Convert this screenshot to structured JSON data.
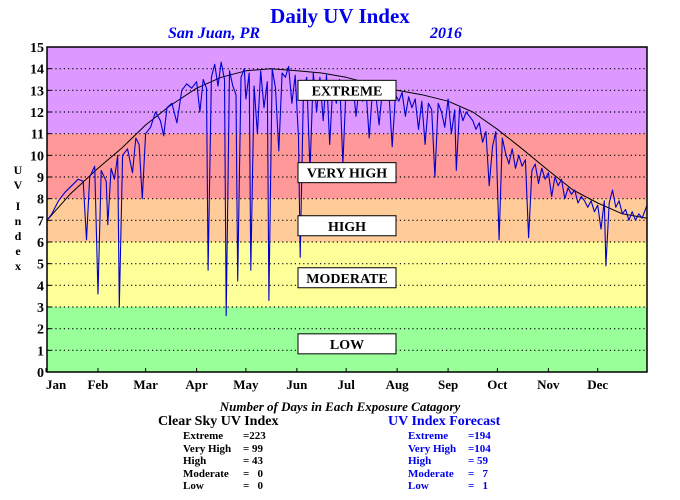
{
  "header": {
    "title": "Daily UV Index",
    "location": "San Juan, PR",
    "year": "2016"
  },
  "axis": {
    "ylabel_letters": [
      "U",
      "V",
      "I",
      "n",
      "d",
      "e",
      "x"
    ],
    "caption": "Number of Days in Each Exposure Catagory"
  },
  "bands": [
    {
      "label": "LOW",
      "from": 0,
      "to": 3,
      "color": "#99ff99"
    },
    {
      "label": "MODERATE",
      "from": 3,
      "to": 6,
      "color": "#ffff99"
    },
    {
      "label": "HIGH",
      "from": 6,
      "to": 8,
      "color": "#ffcc99"
    },
    {
      "label": "VERY HIGH",
      "from": 8,
      "to": 11,
      "color": "#ff9999"
    },
    {
      "label": "EXTREME",
      "from": 11,
      "to": 15,
      "color": "#dd99ff"
    }
  ],
  "stats": {
    "clear_sky": {
      "heading": "Clear Sky UV Index",
      "rows": [
        {
          "label": "Extreme",
          "value": "=223"
        },
        {
          "label": "Very High",
          "value": "= 99"
        },
        {
          "label": "High",
          "value": "= 43"
        },
        {
          "label": "Moderate",
          "value": "=   0"
        },
        {
          "label": "Low",
          "value": "=   0"
        }
      ]
    },
    "forecast": {
      "heading": "UV Index Forecast",
      "rows": [
        {
          "label": "Extreme",
          "value": "=194"
        },
        {
          "label": "Very High",
          "value": "=104"
        },
        {
          "label": "High",
          "value": "= 59"
        },
        {
          "label": "Moderate",
          "value": "=   7"
        },
        {
          "label": "Low",
          "value": "=   1"
        }
      ]
    }
  },
  "chart_data": {
    "type": "line",
    "title": "Daily UV Index",
    "subtitle": "San Juan, PR 2016",
    "xlabel": "",
    "ylabel": "UV Index",
    "ylim": [
      0,
      15
    ],
    "xlim": [
      1,
      366
    ],
    "yticks": [
      0,
      1,
      2,
      3,
      4,
      5,
      6,
      7,
      8,
      9,
      10,
      11,
      12,
      13,
      14,
      15
    ],
    "month_ticks": [
      {
        "label": "Jan",
        "day": 1
      },
      {
        "label": "Feb",
        "day": 32
      },
      {
        "label": "Mar",
        "day": 61
      },
      {
        "label": "Apr",
        "day": 92
      },
      {
        "label": "May",
        "day": 122
      },
      {
        "label": "Jun",
        "day": 153
      },
      {
        "label": "Jul",
        "day": 183
      },
      {
        "label": "Aug",
        "day": 214
      },
      {
        "label": "Sep",
        "day": 245
      },
      {
        "label": "Oct",
        "day": 275
      },
      {
        "label": "Nov",
        "day": 306
      },
      {
        "label": "Dec",
        "day": 336
      }
    ],
    "grid": "horizontal dotted",
    "series": [
      {
        "name": "Clear Sky UV Index",
        "color": "#000000",
        "points": [
          [
            1,
            7.0
          ],
          [
            15,
            8.2
          ],
          [
            32,
            9.4
          ],
          [
            46,
            10.3
          ],
          [
            61,
            11.4
          ],
          [
            76,
            12.3
          ],
          [
            92,
            13.1
          ],
          [
            107,
            13.6
          ],
          [
            122,
            13.9
          ],
          [
            137,
            14.0
          ],
          [
            153,
            13.9
          ],
          [
            168,
            13.8
          ],
          [
            183,
            13.6
          ],
          [
            198,
            13.3
          ],
          [
            214,
            13.0
          ],
          [
            229,
            12.8
          ],
          [
            245,
            12.5
          ],
          [
            260,
            12.0
          ],
          [
            275,
            11.2
          ],
          [
            290,
            10.3
          ],
          [
            306,
            9.3
          ],
          [
            321,
            8.4
          ],
          [
            336,
            7.8
          ],
          [
            351,
            7.3
          ],
          [
            366,
            7.1
          ]
        ]
      },
      {
        "name": "UV Index Forecast",
        "color": "#0000cc",
        "points": [
          [
            1,
            7.0
          ],
          [
            4,
            7.3
          ],
          [
            8,
            7.9
          ],
          [
            12,
            8.3
          ],
          [
            16,
            8.6
          ],
          [
            20,
            8.9
          ],
          [
            23,
            8.8
          ],
          [
            25,
            6.1
          ],
          [
            27,
            9.0
          ],
          [
            30,
            9.5
          ],
          [
            32,
            3.6
          ],
          [
            34,
            9.3
          ],
          [
            37,
            8.8
          ],
          [
            38,
            6.8
          ],
          [
            40,
            9.4
          ],
          [
            42,
            8.9
          ],
          [
            44,
            10.0
          ],
          [
            45,
            3.0
          ],
          [
            47,
            10.0
          ],
          [
            50,
            10.3
          ],
          [
            53,
            9.2
          ],
          [
            55,
            10.8
          ],
          [
            57,
            10.5
          ],
          [
            59,
            8.0
          ],
          [
            61,
            11.0
          ],
          [
            64,
            11.3
          ],
          [
            67,
            12.0
          ],
          [
            70,
            11.6
          ],
          [
            72,
            10.9
          ],
          [
            74,
            12.2
          ],
          [
            77,
            12.4
          ],
          [
            80,
            11.5
          ],
          [
            83,
            13.0
          ],
          [
            86,
            13.3
          ],
          [
            89,
            13.1
          ],
          [
            92,
            13.4
          ],
          [
            94,
            12.0
          ],
          [
            96,
            13.5
          ],
          [
            98,
            13.1
          ],
          [
            99,
            4.7
          ],
          [
            101,
            13.6
          ],
          [
            103,
            14.2
          ],
          [
            105,
            13.2
          ],
          [
            107,
            14.3
          ],
          [
            109,
            13.5
          ],
          [
            110,
            2.6
          ],
          [
            112,
            13.9
          ],
          [
            114,
            13.2
          ],
          [
            116,
            12.8
          ],
          [
            117,
            4.2
          ],
          [
            119,
            13.6
          ],
          [
            121,
            14.0
          ],
          [
            122,
            12.6
          ],
          [
            124,
            13.8
          ],
          [
            125,
            4.7
          ],
          [
            127,
            13.2
          ],
          [
            129,
            11.0
          ],
          [
            131,
            13.9
          ],
          [
            133,
            12.2
          ],
          [
            135,
            13.4
          ],
          [
            136,
            3.3
          ],
          [
            138,
            14.0
          ],
          [
            140,
            13.1
          ],
          [
            142,
            10.2
          ],
          [
            144,
            13.8
          ],
          [
            146,
            13.6
          ],
          [
            148,
            14.1
          ],
          [
            150,
            12.4
          ],
          [
            152,
            13.7
          ],
          [
            154,
            10.8
          ],
          [
            155,
            5.3
          ],
          [
            157,
            12.9
          ],
          [
            159,
            13.6
          ],
          [
            161,
            9.3
          ],
          [
            163,
            13.8
          ],
          [
            165,
            12.0
          ],
          [
            167,
            13.6
          ],
          [
            169,
            11.6
          ],
          [
            171,
            13.7
          ],
          [
            173,
            10.5
          ],
          [
            175,
            13.4
          ],
          [
            177,
            12.4
          ],
          [
            179,
            13.5
          ],
          [
            181,
            9.6
          ],
          [
            183,
            13.3
          ],
          [
            185,
            12.8
          ],
          [
            187,
            13.4
          ],
          [
            189,
            11.8
          ],
          [
            191,
            13.2
          ],
          [
            193,
            12.5
          ],
          [
            195,
            13.1
          ],
          [
            197,
            10.8
          ],
          [
            199,
            13.0
          ],
          [
            201,
            12.8
          ],
          [
            203,
            11.4
          ],
          [
            205,
            13.0
          ],
          [
            207,
            12.6
          ],
          [
            209,
            12.9
          ],
          [
            211,
            10.4
          ],
          [
            213,
            12.8
          ],
          [
            215,
            12.5
          ],
          [
            217,
            12.9
          ],
          [
            219,
            11.8
          ],
          [
            221,
            12.7
          ],
          [
            223,
            12.2
          ],
          [
            225,
            12.6
          ],
          [
            227,
            11.2
          ],
          [
            229,
            12.5
          ],
          [
            231,
            10.5
          ],
          [
            233,
            12.4
          ],
          [
            235,
            12.1
          ],
          [
            237,
            9.0
          ],
          [
            239,
            12.4
          ],
          [
            241,
            12.0
          ],
          [
            243,
            11.3
          ],
          [
            245,
            12.6
          ],
          [
            247,
            11.0
          ],
          [
            249,
            12.1
          ],
          [
            250,
            9.3
          ],
          [
            252,
            12.2
          ],
          [
            254,
            11.6
          ],
          [
            256,
            12.0
          ],
          [
            258,
            11.8
          ],
          [
            260,
            11.6
          ],
          [
            262,
            11.2
          ],
          [
            264,
            11.5
          ],
          [
            266,
            10.6
          ],
          [
            268,
            11.1
          ],
          [
            270,
            8.6
          ],
          [
            272,
            10.4
          ],
          [
            274,
            11.1
          ],
          [
            276,
            6.1
          ],
          [
            278,
            10.8
          ],
          [
            280,
            10.1
          ],
          [
            282,
            9.6
          ],
          [
            284,
            10.3
          ],
          [
            286,
            9.4
          ],
          [
            288,
            10.0
          ],
          [
            290,
            9.5
          ],
          [
            292,
            9.8
          ],
          [
            294,
            6.2
          ],
          [
            296,
            9.3
          ],
          [
            298,
            9.6
          ],
          [
            300,
            8.7
          ],
          [
            302,
            9.4
          ],
          [
            304,
            8.9
          ],
          [
            306,
            9.2
          ],
          [
            308,
            8.1
          ],
          [
            310,
            9.0
          ],
          [
            312,
            8.6
          ],
          [
            314,
            8.9
          ],
          [
            316,
            8.0
          ],
          [
            318,
            8.5
          ],
          [
            320,
            8.2
          ],
          [
            322,
            8.4
          ],
          [
            324,
            7.8
          ],
          [
            326,
            8.1
          ],
          [
            328,
            7.9
          ],
          [
            330,
            7.6
          ],
          [
            332,
            7.9
          ],
          [
            334,
            7.4
          ],
          [
            336,
            7.7
          ],
          [
            338,
            6.6
          ],
          [
            340,
            7.9
          ],
          [
            341,
            4.9
          ],
          [
            343,
            7.8
          ],
          [
            345,
            8.4
          ],
          [
            347,
            7.6
          ],
          [
            349,
            7.9
          ],
          [
            351,
            7.3
          ],
          [
            353,
            7.5
          ],
          [
            355,
            7.0
          ],
          [
            357,
            7.4
          ],
          [
            359,
            7.0
          ],
          [
            361,
            7.3
          ],
          [
            363,
            7.1
          ],
          [
            366,
            7.7
          ]
        ]
      }
    ]
  }
}
